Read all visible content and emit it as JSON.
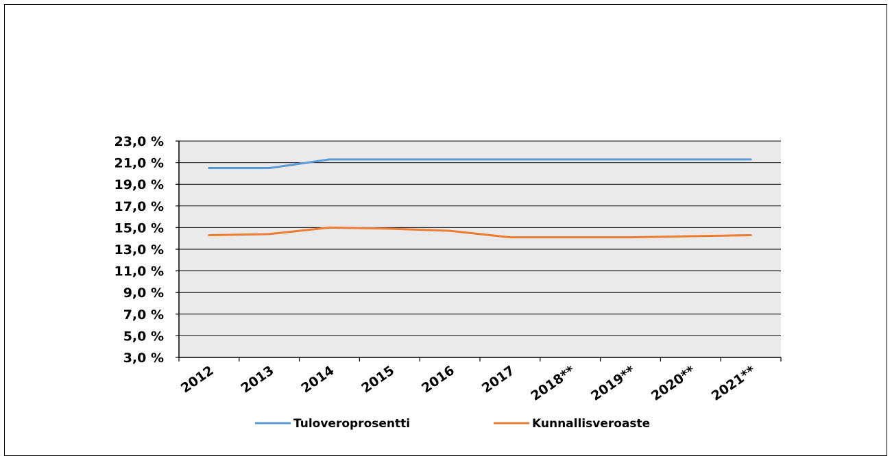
{
  "chart_data": {
    "type": "line",
    "title": "",
    "xlabel": "",
    "ylabel": "",
    "categories": [
      "2012",
      "2013",
      "2014",
      "2015",
      "2016",
      "2017",
      "2018**",
      "2019**",
      "2020**",
      "2021**"
    ],
    "ylim": [
      3.0,
      23.0
    ],
    "yticks": [
      3.0,
      5.0,
      7.0,
      9.0,
      11.0,
      13.0,
      15.0,
      17.0,
      19.0,
      21.0,
      23.0
    ],
    "ytick_labels": [
      "3,0 %",
      "5,0 %",
      "7,0 %",
      "9,0 %",
      "11,0 %",
      "13,0 %",
      "15,0 %",
      "17,0 %",
      "19,0 %",
      "21,0 %",
      "23,0 %"
    ],
    "grid": true,
    "legend_position": "bottom",
    "series": [
      {
        "name": "Tuloveroprosentti",
        "color": "#5b9bd5",
        "values": [
          20.5,
          20.5,
          21.3,
          21.3,
          21.3,
          21.3,
          21.3,
          21.3,
          21.3,
          21.3
        ]
      },
      {
        "name": "Kunnallisveroaste",
        "color": "#ed7d31",
        "values": [
          14.3,
          14.4,
          15.0,
          14.9,
          14.7,
          14.1,
          14.1,
          14.1,
          14.2,
          14.3
        ]
      }
    ],
    "plot_background": "#eaeaea",
    "gridline_color": "#000000"
  }
}
